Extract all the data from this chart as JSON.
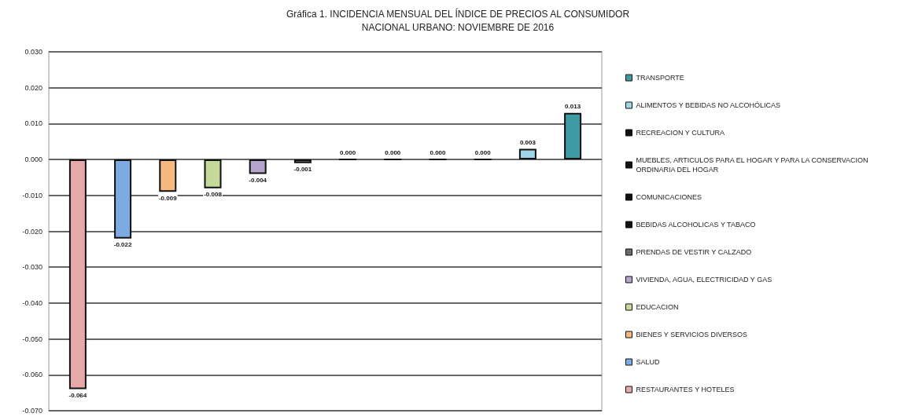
{
  "chart_data": {
    "type": "bar",
    "title": "Gráfica 1. INCIDENCIA MENSUAL DEL ÍNDICE DE PRECIOS AL CONSUMIDOR\nNACIONAL URBANO: NOVIEMBRE DE 2016",
    "categories": [
      null
    ],
    "series": [
      {
        "name": "RESTAURANTES Y HOTELES",
        "color": "#e6a8a8",
        "values": [
          -0.064
        ],
        "value_labels": [
          "-0.064"
        ]
      },
      {
        "name": "SALUD",
        "color": "#7eaae2",
        "values": [
          -0.022
        ],
        "value_labels": [
          "-0.022"
        ]
      },
      {
        "name": "BIENES Y SERVICIOS DIVERSOS",
        "color": "#f7b97e",
        "values": [
          -0.009
        ],
        "value_labels": [
          "-0.009"
        ]
      },
      {
        "name": "EDUCACION",
        "color": "#c3da98",
        "values": [
          -0.008
        ],
        "value_labels": [
          "-0.008"
        ]
      },
      {
        "name": "VIVIENDA, AGUA, ELECTRICIDAD Y GAS",
        "color": "#b5a4cf",
        "values": [
          -0.004
        ],
        "value_labels": [
          "-0.004"
        ]
      },
      {
        "name": "PRENDAS DE VESTIR Y CALZADO",
        "color": "#6b6b6b",
        "values": [
          -0.001
        ],
        "value_labels": [
          "-0.001"
        ]
      },
      {
        "name": "BEBIDAS ALCOHOLICAS Y TABACO",
        "color": "#111111",
        "values": [
          0
        ],
        "value_labels": [
          "0.000"
        ]
      },
      {
        "name": "COMUNICACIONES",
        "color": "#111111",
        "values": [
          0
        ],
        "value_labels": [
          "0.000"
        ]
      },
      {
        "name": "MUEBLES, ARTICULOS PARA EL HOGAR Y PARA LA CONSERVACION ORDINARIA DEL HOGAR",
        "color": "#111111",
        "values": [
          0
        ],
        "value_labels": [
          "0.000"
        ]
      },
      {
        "name": "RECREACION Y CULTURA",
        "color": "#111111",
        "values": [
          0
        ],
        "value_labels": [
          "0.000"
        ]
      },
      {
        "name": "ALIMENTOS Y BEBIDAS NO ALCOHÓLICAS",
        "color": "#9ed4e6",
        "values": [
          0.003
        ],
        "value_labels": [
          "0.003"
        ]
      },
      {
        "name": "TRANSPORTE",
        "color": "#3e9aa3",
        "values": [
          0.013
        ],
        "value_labels": [
          "0.013"
        ]
      }
    ],
    "ylim": [
      -0.07,
      0.03
    ],
    "yticks": [
      {
        "value": -0.07,
        "label": "-0.070"
      },
      {
        "value": -0.06,
        "label": "-0.060"
      },
      {
        "value": -0.05,
        "label": "-0.050"
      },
      {
        "value": -0.04,
        "label": "-0.040"
      },
      {
        "value": -0.03,
        "label": "-0.030"
      },
      {
        "value": -0.02,
        "label": "-0.020"
      },
      {
        "value": -0.01,
        "label": "-0.010"
      },
      {
        "value": 0,
        "label": "0.000"
      },
      {
        "value": 0.01,
        "label": "0.010"
      },
      {
        "value": 0.02,
        "label": "0.020"
      },
      {
        "value": 0.03,
        "label": "0.030"
      }
    ],
    "grid": "y",
    "legend": "right"
  }
}
